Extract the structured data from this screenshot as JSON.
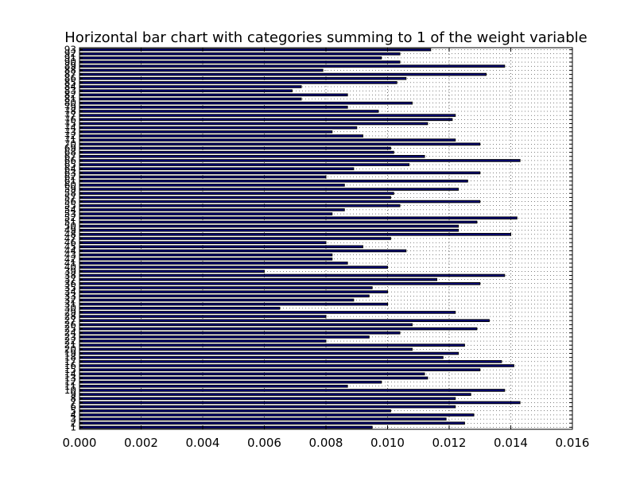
{
  "chart_data": {
    "type": "bar",
    "orientation": "horizontal",
    "title": "Horizontal bar chart with categories summing to 1 of the weight variable",
    "xlabel": "",
    "ylabel": "",
    "xlim": [
      0,
      0.016
    ],
    "xticks": [
      "0.000",
      "0.002",
      "0.004",
      "0.006",
      "0.008",
      "0.010",
      "0.012",
      "0.014",
      "0.016"
    ],
    "grid": "x, dotted",
    "bar_color": "#000080",
    "categories": [
      "1",
      "2",
      "3",
      "4",
      "5",
      "6",
      "7",
      "8",
      "9",
      "10",
      "11",
      "12",
      "13",
      "14",
      "15",
      "16",
      "17",
      "18",
      "19",
      "20",
      "21",
      "22",
      "23",
      "24",
      "25",
      "26",
      "27",
      "28",
      "29",
      "30",
      "31",
      "32",
      "33",
      "34",
      "35",
      "36",
      "37",
      "38",
      "39",
      "40",
      "41",
      "42",
      "43",
      "44",
      "45",
      "46",
      "47",
      "48",
      "49",
      "50",
      "51",
      "52",
      "53",
      "54",
      "55",
      "56",
      "57",
      "58",
      "59",
      "60",
      "61",
      "62",
      "63",
      "64",
      "65",
      "66",
      "67",
      "68",
      "69",
      "70",
      "71",
      "72",
      "73",
      "74",
      "75",
      "76",
      "77",
      "78",
      "79",
      "80",
      "81",
      "82",
      "83",
      "84",
      "85",
      "86",
      "87",
      "88",
      "89",
      "90",
      "91",
      "92",
      "93"
    ],
    "values": [
      0.0095,
      0.0125,
      0.0119,
      0.0128,
      0.0101,
      0.0122,
      0.0143,
      0.0122,
      0.0127,
      0.0138,
      0.0087,
      0.0098,
      0.0113,
      0.0112,
      0.013,
      0.0141,
      0.0137,
      0.0118,
      0.0123,
      0.0108,
      0.0125,
      0.008,
      0.0094,
      0.0104,
      0.0129,
      0.0108,
      0.0133,
      0.008,
      0.0122,
      0.0065,
      0.01,
      0.0089,
      0.0094,
      0.01,
      0.0095,
      0.013,
      0.0116,
      0.0138,
      0.006,
      0.01,
      0.0087,
      0.0082,
      0.0082,
      0.0106,
      0.0092,
      0.008,
      0.0101,
      0.014,
      0.0123,
      0.0123,
      0.0129,
      0.0142,
      0.0082,
      0.0086,
      0.0104,
      0.013,
      0.0101,
      0.0102,
      0.0123,
      0.0086,
      0.0126,
      0.008,
      0.013,
      0.0089,
      0.0107,
      0.0143,
      0.0112,
      0.0102,
      0.0101,
      0.013,
      0.0122,
      0.0092,
      0.0082,
      0.009,
      0.0113,
      0.0121,
      0.0122,
      0.0097,
      0.0087,
      0.0108,
      0.0072,
      0.0087,
      0.0069,
      0.0072,
      0.0103,
      0.0106,
      0.0132,
      0.0079,
      0.0138,
      0.0104,
      0.0098,
      0.0104,
      0.0114
    ]
  }
}
